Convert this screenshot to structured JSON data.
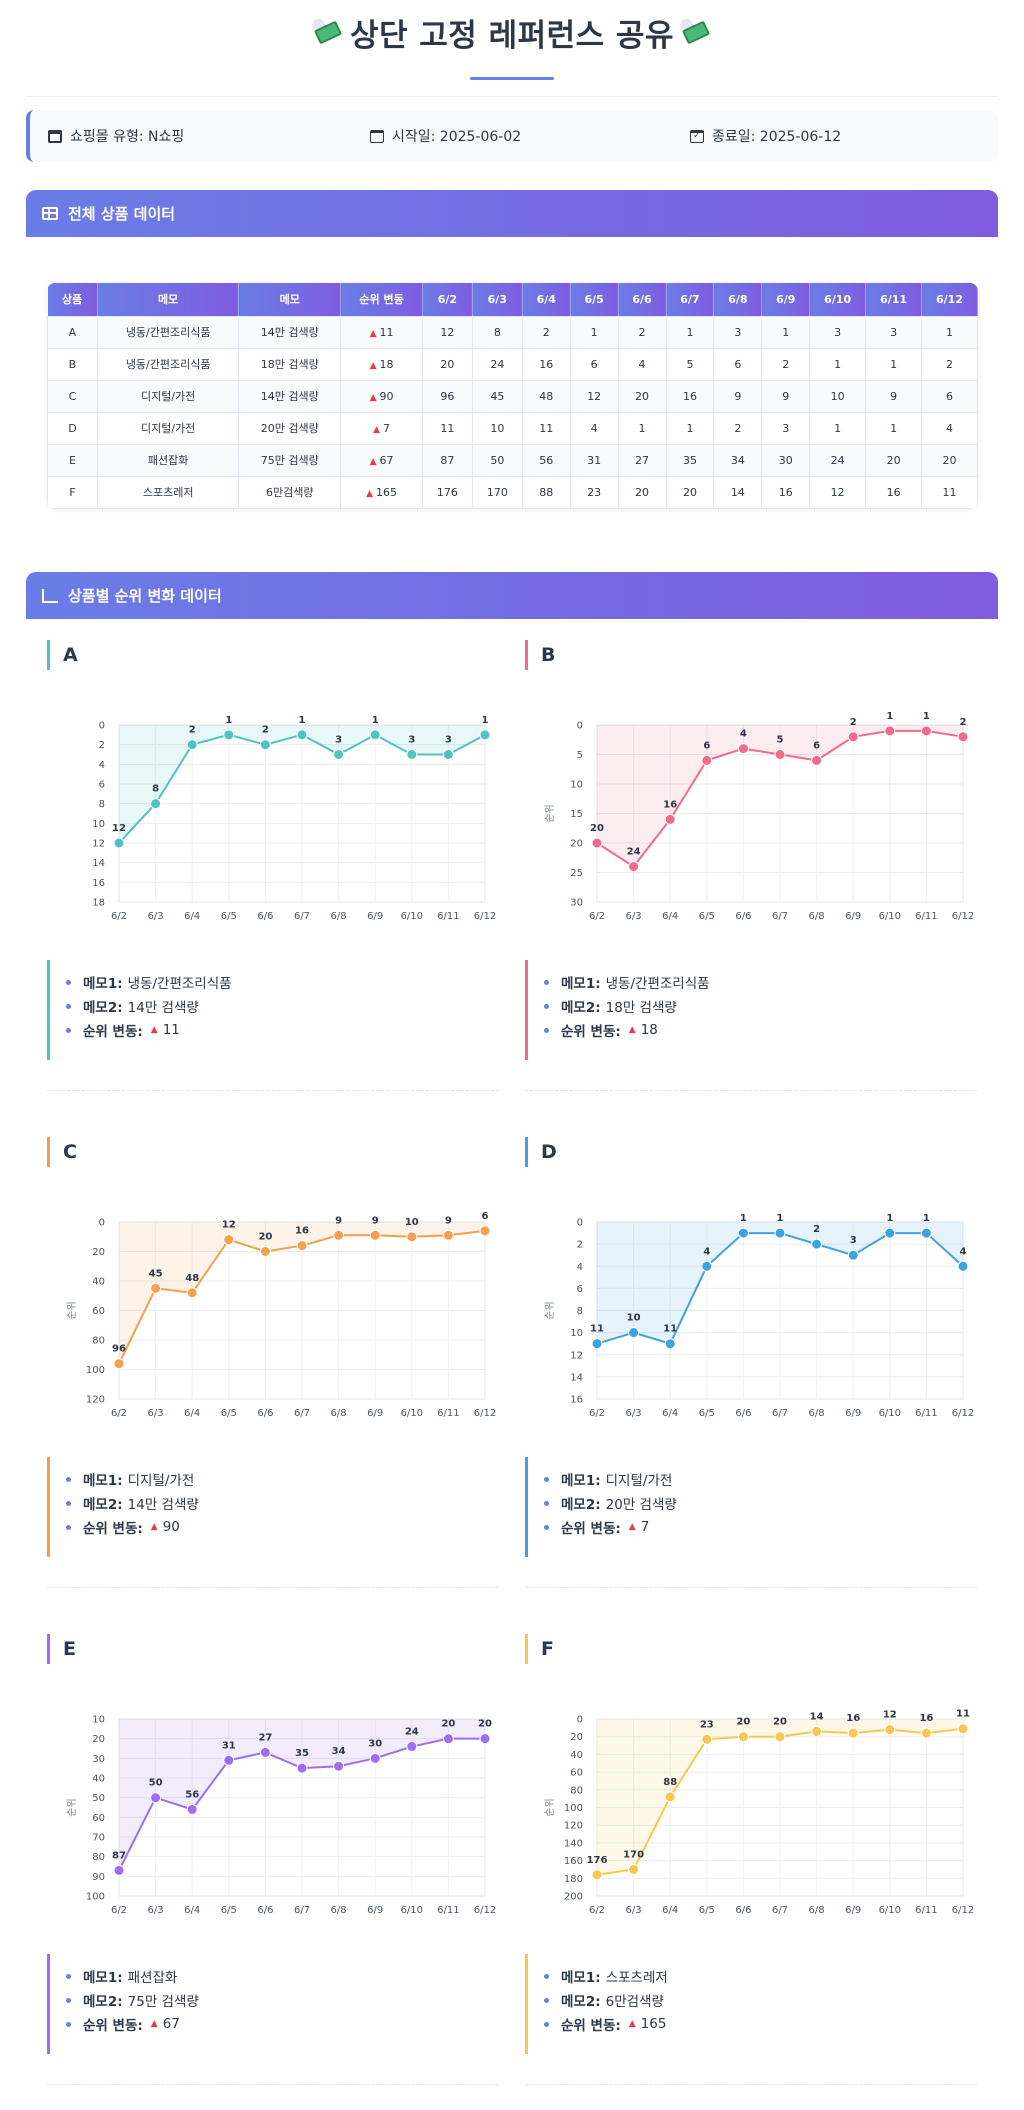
{
  "page_title": "상단 고정 레퍼런스 공유",
  "info": {
    "mall": "쇼핑몰 유형: N쇼핑",
    "start": "시작일: 2025-06-02",
    "end": "종료일: 2025-06-12"
  },
  "sections": {
    "table_title": "전체 상품 데이터",
    "charts_title": "상품별 순위 변화 데이터"
  },
  "table": {
    "headers": [
      "상품",
      "메모",
      "메모",
      "순위 변동",
      "6/2",
      "6/3",
      "6/4",
      "6/5",
      "6/6",
      "6/7",
      "6/8",
      "6/9",
      "6/10",
      "6/11",
      "6/12"
    ],
    "rows": [
      [
        "A",
        "냉동/간편조리식품",
        "14만 검색량",
        "11",
        "12",
        "8",
        "2",
        "1",
        "2",
        "1",
        "3",
        "1",
        "3",
        "3",
        "1"
      ],
      [
        "B",
        "냉동/간편조리식품",
        "18만 검색량",
        "18",
        "20",
        "24",
        "16",
        "6",
        "4",
        "5",
        "6",
        "2",
        "1",
        "1",
        "2"
      ],
      [
        "C",
        "디지털/가전",
        "14만 검색량",
        "90",
        "96",
        "45",
        "48",
        "12",
        "20",
        "16",
        "9",
        "9",
        "10",
        "9",
        "6"
      ],
      [
        "D",
        "디지털/가전",
        "20만 검색량",
        "7",
        "11",
        "10",
        "11",
        "4",
        "1",
        "1",
        "2",
        "3",
        "1",
        "1",
        "4"
      ],
      [
        "E",
        "패션잡화",
        "75만 검색량",
        "67",
        "87",
        "50",
        "56",
        "31",
        "27",
        "35",
        "34",
        "30",
        "24",
        "20",
        "20"
      ],
      [
        "F",
        "스포츠레저",
        "6만검색량",
        "165",
        "176",
        "170",
        "88",
        "23",
        "20",
        "20",
        "14",
        "16",
        "12",
        "16",
        "11"
      ]
    ]
  },
  "memo_labels": {
    "memo1": "메모1:",
    "memo2": "메모2:",
    "change": "순위 변동:"
  },
  "chart_data": [
    {
      "type": "line",
      "name": "A",
      "color": "#4fc3c3",
      "x": [
        "6/2",
        "6/3",
        "6/4",
        "6/5",
        "6/6",
        "6/7",
        "6/8",
        "6/9",
        "6/10",
        "6/11",
        "6/12"
      ],
      "values": [
        12,
        8,
        2,
        1,
        2,
        1,
        3,
        1,
        3,
        3,
        1
      ],
      "ylabel": "",
      "ylim": [
        0,
        18
      ],
      "yticks": [
        0,
        2,
        4,
        6,
        8,
        10,
        12,
        14,
        16,
        18
      ],
      "y_inverted": true,
      "memo1": "냉동/간편조리식품",
      "memo2": "14만 검색량",
      "change": "11"
    },
    {
      "type": "line",
      "name": "B",
      "color": "#f26b8a",
      "x": [
        "6/2",
        "6/3",
        "6/4",
        "6/5",
        "6/6",
        "6/7",
        "6/8",
        "6/9",
        "6/10",
        "6/11",
        "6/12"
      ],
      "values": [
        20,
        24,
        16,
        6,
        4,
        5,
        6,
        2,
        1,
        1,
        2
      ],
      "ylabel": "순위",
      "ylim": [
        0,
        30
      ],
      "yticks": [
        0,
        5,
        10,
        15,
        20,
        25,
        30
      ],
      "y_inverted": true,
      "memo1": "냉동/간편조리식품",
      "memo2": "18만 검색량",
      "change": "18"
    },
    {
      "type": "line",
      "name": "C",
      "color": "#f6a04d",
      "x": [
        "6/2",
        "6/3",
        "6/4",
        "6/5",
        "6/6",
        "6/7",
        "6/8",
        "6/9",
        "6/10",
        "6/11",
        "6/12"
      ],
      "values": [
        96,
        45,
        48,
        12,
        20,
        16,
        9,
        9,
        10,
        9,
        6
      ],
      "ylabel": "순위",
      "ylim": [
        0,
        120
      ],
      "yticks": [
        0,
        20,
        40,
        60,
        80,
        100,
        120
      ],
      "y_inverted": true,
      "memo1": "디지털/가전",
      "memo2": "14만 검색량",
      "change": "90"
    },
    {
      "type": "line",
      "name": "D",
      "color": "#3fa2e0",
      "x": [
        "6/2",
        "6/3",
        "6/4",
        "6/5",
        "6/6",
        "6/7",
        "6/8",
        "6/9",
        "6/10",
        "6/11",
        "6/12"
      ],
      "values": [
        11,
        10,
        11,
        4,
        1,
        1,
        2,
        3,
        1,
        1,
        4
      ],
      "ylabel": "순위",
      "ylim": [
        0,
        16
      ],
      "yticks": [
        0,
        2,
        4,
        6,
        8,
        10,
        12,
        14,
        16
      ],
      "y_inverted": true,
      "memo1": "디지털/가전",
      "memo2": "20만 검색량",
      "change": "7"
    },
    {
      "type": "line",
      "name": "E",
      "color": "#9b6ef3",
      "x": [
        "6/2",
        "6/3",
        "6/4",
        "6/5",
        "6/6",
        "6/7",
        "6/8",
        "6/9",
        "6/10",
        "6/11",
        "6/12"
      ],
      "values": [
        87,
        50,
        56,
        31,
        27,
        35,
        34,
        30,
        24,
        20,
        20
      ],
      "ylabel": "순위",
      "ylim": [
        10,
        100
      ],
      "yticks": [
        10,
        20,
        30,
        40,
        50,
        60,
        70,
        80,
        90,
        100
      ],
      "y_inverted": true,
      "memo1": "패션잡화",
      "memo2": "75만 검색량",
      "change": "67"
    },
    {
      "type": "line",
      "name": "F",
      "color": "#f9c74f",
      "x": [
        "6/2",
        "6/3",
        "6/4",
        "6/5",
        "6/6",
        "6/7",
        "6/8",
        "6/9",
        "6/10",
        "6/11",
        "6/12"
      ],
      "values": [
        176,
        170,
        88,
        23,
        20,
        20,
        14,
        16,
        12,
        16,
        11
      ],
      "ylabel": "순위",
      "ylim": [
        0,
        200
      ],
      "yticks": [
        0,
        20,
        40,
        60,
        80,
        100,
        120,
        140,
        160,
        180,
        200
      ],
      "y_inverted": true,
      "memo1": "스포츠레저",
      "memo2": "6만검색량",
      "change": "165"
    }
  ]
}
